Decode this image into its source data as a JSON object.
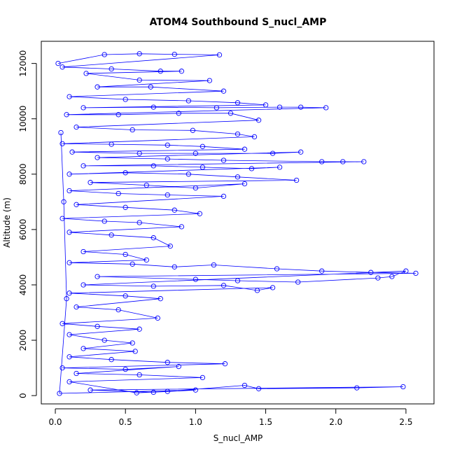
{
  "chart_data": {
    "type": "scatter",
    "title": "ATOM4 Southbound S_nucl_AMP",
    "xlabel": "S_nucl_AMP",
    "ylabel": "Altitude (m)",
    "xlim": [
      -0.1,
      2.7
    ],
    "ylim": [
      -300,
      12800
    ],
    "xticks": [
      0.0,
      0.5,
      1.0,
      1.5,
      2.0,
      2.5
    ],
    "xtick_labels": [
      "0.0",
      "0.5",
      "1.0",
      "1.5",
      "2.0",
      "2.5"
    ],
    "yticks": [
      0,
      2000,
      4000,
      6000,
      8000,
      10000,
      12000
    ],
    "ytick_labels": [
      "0",
      "2000",
      "4000",
      "6000",
      "8000",
      "10000",
      "12000"
    ],
    "series_color": "#0000FF",
    "marker": "open-circle",
    "connected": true,
    "grid": false,
    "legend": "none",
    "points": [
      [
        0.02,
        12000
      ],
      [
        0.35,
        12320
      ],
      [
        0.6,
        12350
      ],
      [
        0.85,
        12330
      ],
      [
        1.17,
        12310
      ],
      [
        0.05,
        11870
      ],
      [
        0.4,
        11800
      ],
      [
        0.75,
        11720
      ],
      [
        0.9,
        11720
      ],
      [
        0.22,
        11640
      ],
      [
        0.6,
        11400
      ],
      [
        1.1,
        11380
      ],
      [
        0.3,
        11150
      ],
      [
        0.68,
        11150
      ],
      [
        1.2,
        11000
      ],
      [
        0.1,
        10800
      ],
      [
        0.5,
        10700
      ],
      [
        0.95,
        10650
      ],
      [
        1.3,
        10580
      ],
      [
        1.5,
        10500
      ],
      [
        0.2,
        10400
      ],
      [
        0.7,
        10420
      ],
      [
        1.15,
        10400
      ],
      [
        1.6,
        10420
      ],
      [
        1.75,
        10420
      ],
      [
        1.93,
        10400
      ],
      [
        0.08,
        10150
      ],
      [
        0.45,
        10150
      ],
      [
        0.88,
        10200
      ],
      [
        1.25,
        10200
      ],
      [
        1.45,
        9950
      ],
      [
        0.15,
        9700
      ],
      [
        0.55,
        9600
      ],
      [
        0.98,
        9580
      ],
      [
        1.3,
        9450
      ],
      [
        1.42,
        9350
      ],
      [
        0.05,
        9100
      ],
      [
        0.4,
        9080
      ],
      [
        0.8,
        9050
      ],
      [
        1.05,
        9000
      ],
      [
        1.35,
        8900
      ],
      [
        0.12,
        8800
      ],
      [
        0.6,
        8750
      ],
      [
        1.0,
        8750
      ],
      [
        1.55,
        8750
      ],
      [
        1.75,
        8800
      ],
      [
        0.3,
        8600
      ],
      [
        0.8,
        8550
      ],
      [
        1.2,
        8500
      ],
      [
        1.9,
        8450
      ],
      [
        2.05,
        8450
      ],
      [
        2.2,
        8450
      ],
      [
        0.2,
        8300
      ],
      [
        0.7,
        8300
      ],
      [
        1.05,
        8250
      ],
      [
        1.4,
        8200
      ],
      [
        1.6,
        8250
      ],
      [
        0.1,
        8000
      ],
      [
        0.5,
        8050
      ],
      [
        0.95,
        8000
      ],
      [
        1.3,
        7900
      ],
      [
        1.72,
        7780
      ],
      [
        0.25,
        7700
      ],
      [
        0.65,
        7600
      ],
      [
        1.0,
        7500
      ],
      [
        1.35,
        7650
      ],
      [
        0.1,
        7400
      ],
      [
        0.45,
        7300
      ],
      [
        0.8,
        7250
      ],
      [
        1.2,
        7200
      ],
      [
        0.15,
        6900
      ],
      [
        0.5,
        6800
      ],
      [
        0.85,
        6700
      ],
      [
        1.03,
        6570
      ],
      [
        0.05,
        6400
      ],
      [
        0.35,
        6300
      ],
      [
        0.6,
        6250
      ],
      [
        0.9,
        6100
      ],
      [
        0.1,
        5900
      ],
      [
        0.4,
        5800
      ],
      [
        0.7,
        5700
      ],
      [
        0.82,
        5400
      ],
      [
        0.2,
        5200
      ],
      [
        0.5,
        5100
      ],
      [
        0.65,
        4900
      ],
      [
        0.1,
        4800
      ],
      [
        0.55,
        4750
      ],
      [
        0.85,
        4650
      ],
      [
        1.13,
        4720
      ],
      [
        1.58,
        4580
      ],
      [
        1.9,
        4500
      ],
      [
        2.25,
        4450
      ],
      [
        2.57,
        4420
      ],
      [
        0.3,
        4300
      ],
      [
        1.0,
        4200
      ],
      [
        1.3,
        4150
      ],
      [
        1.73,
        4100
      ],
      [
        2.3,
        4250
      ],
      [
        2.4,
        4300
      ],
      [
        2.5,
        4500
      ],
      [
        0.2,
        4000
      ],
      [
        0.7,
        3950
      ],
      [
        1.2,
        3980
      ],
      [
        1.44,
        3800
      ],
      [
        1.55,
        3900
      ],
      [
        0.1,
        3700
      ],
      [
        0.5,
        3600
      ],
      [
        0.75,
        3500
      ],
      [
        0.15,
        3200
      ],
      [
        0.45,
        3100
      ],
      [
        0.73,
        2800
      ],
      [
        0.05,
        2600
      ],
      [
        0.3,
        2500
      ],
      [
        0.6,
        2400
      ],
      [
        0.1,
        2200
      ],
      [
        0.35,
        2000
      ],
      [
        0.55,
        1900
      ],
      [
        0.2,
        1700
      ],
      [
        0.57,
        1600
      ],
      [
        0.1,
        1400
      ],
      [
        0.4,
        1300
      ],
      [
        0.8,
        1200
      ],
      [
        1.21,
        1150
      ],
      [
        0.05,
        1000
      ],
      [
        0.5,
        950
      ],
      [
        0.88,
        1050
      ],
      [
        0.15,
        800
      ],
      [
        0.6,
        750
      ],
      [
        1.05,
        650
      ],
      [
        0.1,
        500
      ],
      [
        0.58,
        100
      ],
      [
        0.8,
        150
      ],
      [
        1.35,
        370
      ],
      [
        1.45,
        250
      ],
      [
        2.15,
        280
      ],
      [
        2.48,
        320
      ],
      [
        0.25,
        200
      ],
      [
        0.7,
        120
      ],
      [
        1.0,
        200
      ],
      [
        0.03,
        80
      ],
      [
        0.08,
        3500
      ],
      [
        0.06,
        7000
      ],
      [
        0.04,
        9500
      ]
    ]
  }
}
